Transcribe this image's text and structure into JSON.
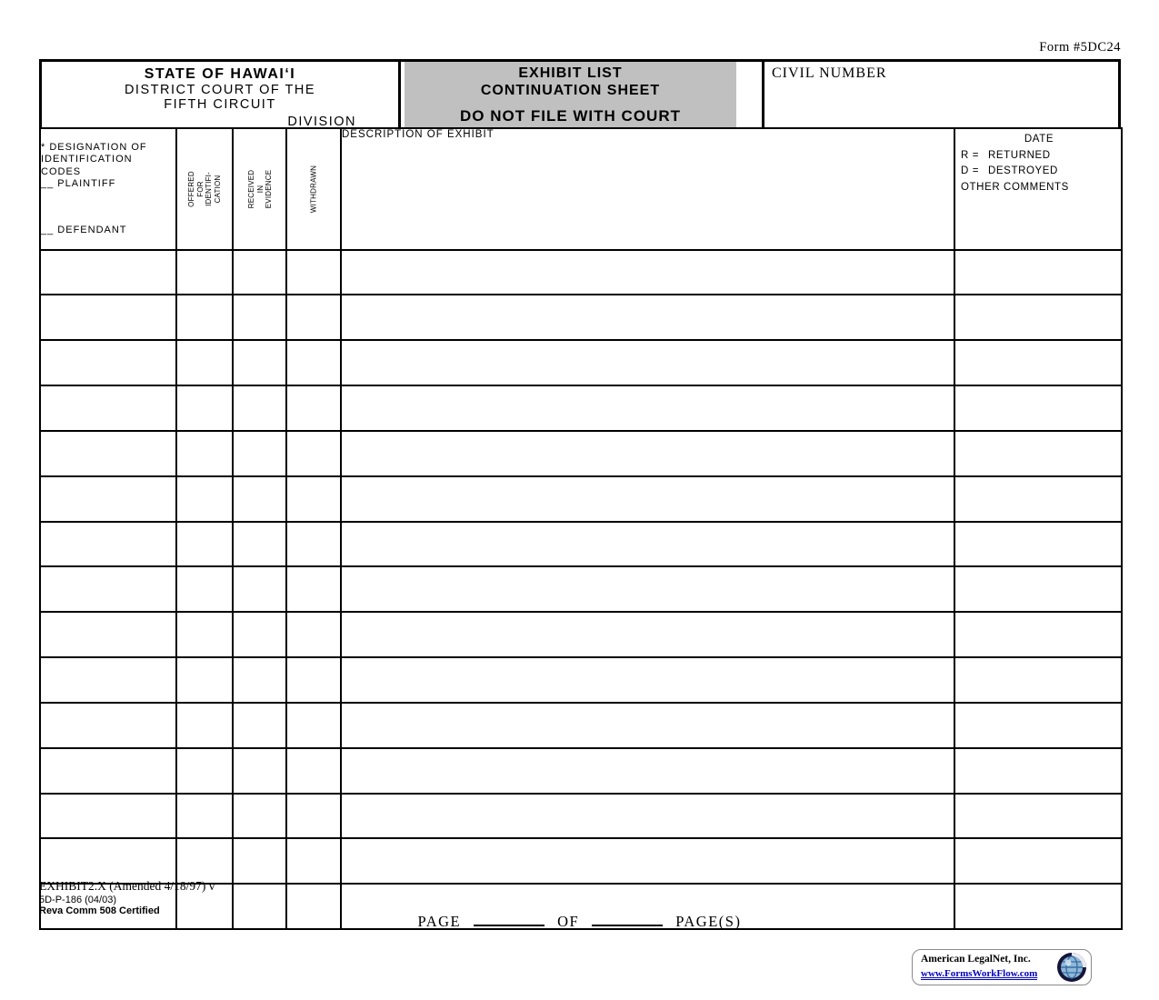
{
  "form_number": "Form #5DC24",
  "header": {
    "court": {
      "line1": "STATE OF HAWAIʻI",
      "line2": "DISTRICT COURT OF THE",
      "line3": "FIFTH CIRCUIT",
      "division_label": "DIVISION"
    },
    "title": {
      "line1": "EXHIBIT LIST",
      "line2": "CONTINUATION SHEET",
      "warning": "DO NOT FILE WITH COURT"
    },
    "civil_number_label": "CIVIL NUMBER"
  },
  "table": {
    "row_count": 15,
    "columns": {
      "designation_lines": "* DESIGNATION OF\nIDENTIFICATION\nCODES\n__ PLAINTIFF",
      "designation_defendant": "__ DEFENDANT",
      "offered": "OFFERED\nFOR\nIDENTIFI-\nCATION",
      "received": "RECEIVED\nIN\nEVIDENCE",
      "withdrawn": "WITHDRAWN",
      "description": "DESCRIPTION OF EXHIBIT",
      "date": {
        "title": "DATE",
        "r_key": "R =",
        "r_val": "RETURNED",
        "d_key": "D =",
        "d_val": "DESTROYED",
        "other": "OTHER COMMENTS"
      }
    }
  },
  "footer": {
    "form_id": "EXHIBIT2.X (Amended 4/18/97) v",
    "form_code": "5D-P-186 (04/03)",
    "certification": "Reva Comm 508 Certified",
    "page_label": "PAGE",
    "of_label": "OF",
    "pages_label": "PAGE(S)"
  },
  "branding": {
    "company": "American LegalNet, Inc.",
    "website": "www.FormsWorkFlow.com"
  },
  "colors": {
    "header_gray": "#c0c0c0",
    "border": "#000000",
    "link_blue": "#0000bf"
  }
}
